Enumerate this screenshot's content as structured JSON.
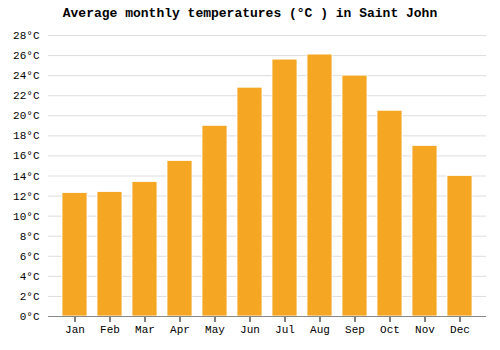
{
  "chart_data": {
    "type": "bar",
    "title": "Average monthly temperatures (°C ) in Saint John",
    "categories": [
      "Jan",
      "Feb",
      "Mar",
      "Apr",
      "May",
      "Jun",
      "Jul",
      "Aug",
      "Sep",
      "Oct",
      "Nov",
      "Dec"
    ],
    "values": [
      12.3,
      12.4,
      13.4,
      15.5,
      19.0,
      22.8,
      25.6,
      26.1,
      24.0,
      20.5,
      17.0,
      14.0
    ],
    "color": "#F5A623",
    "ylim": [
      0,
      28
    ],
    "yticks": [
      {
        "value": 0,
        "label": "0°C"
      },
      {
        "value": 2,
        "label": "2°C"
      },
      {
        "value": 4,
        "label": "4°C"
      },
      {
        "value": 6,
        "label": "6°C"
      },
      {
        "value": 8,
        "label": "8°C"
      },
      {
        "value": 10,
        "label": "10°C"
      },
      {
        "value": 12,
        "label": "12°C"
      },
      {
        "value": 14,
        "label": "14°C"
      },
      {
        "value": 16,
        "label": "16°C"
      },
      {
        "value": 18,
        "label": "18°C"
      },
      {
        "value": 20,
        "label": "20°C"
      },
      {
        "value": 22,
        "label": "22°C"
      },
      {
        "value": 24,
        "label": "24°C"
      },
      {
        "value": 26,
        "label": "26°C"
      },
      {
        "value": 28,
        "label": "28°C"
      }
    ],
    "grid": true
  }
}
